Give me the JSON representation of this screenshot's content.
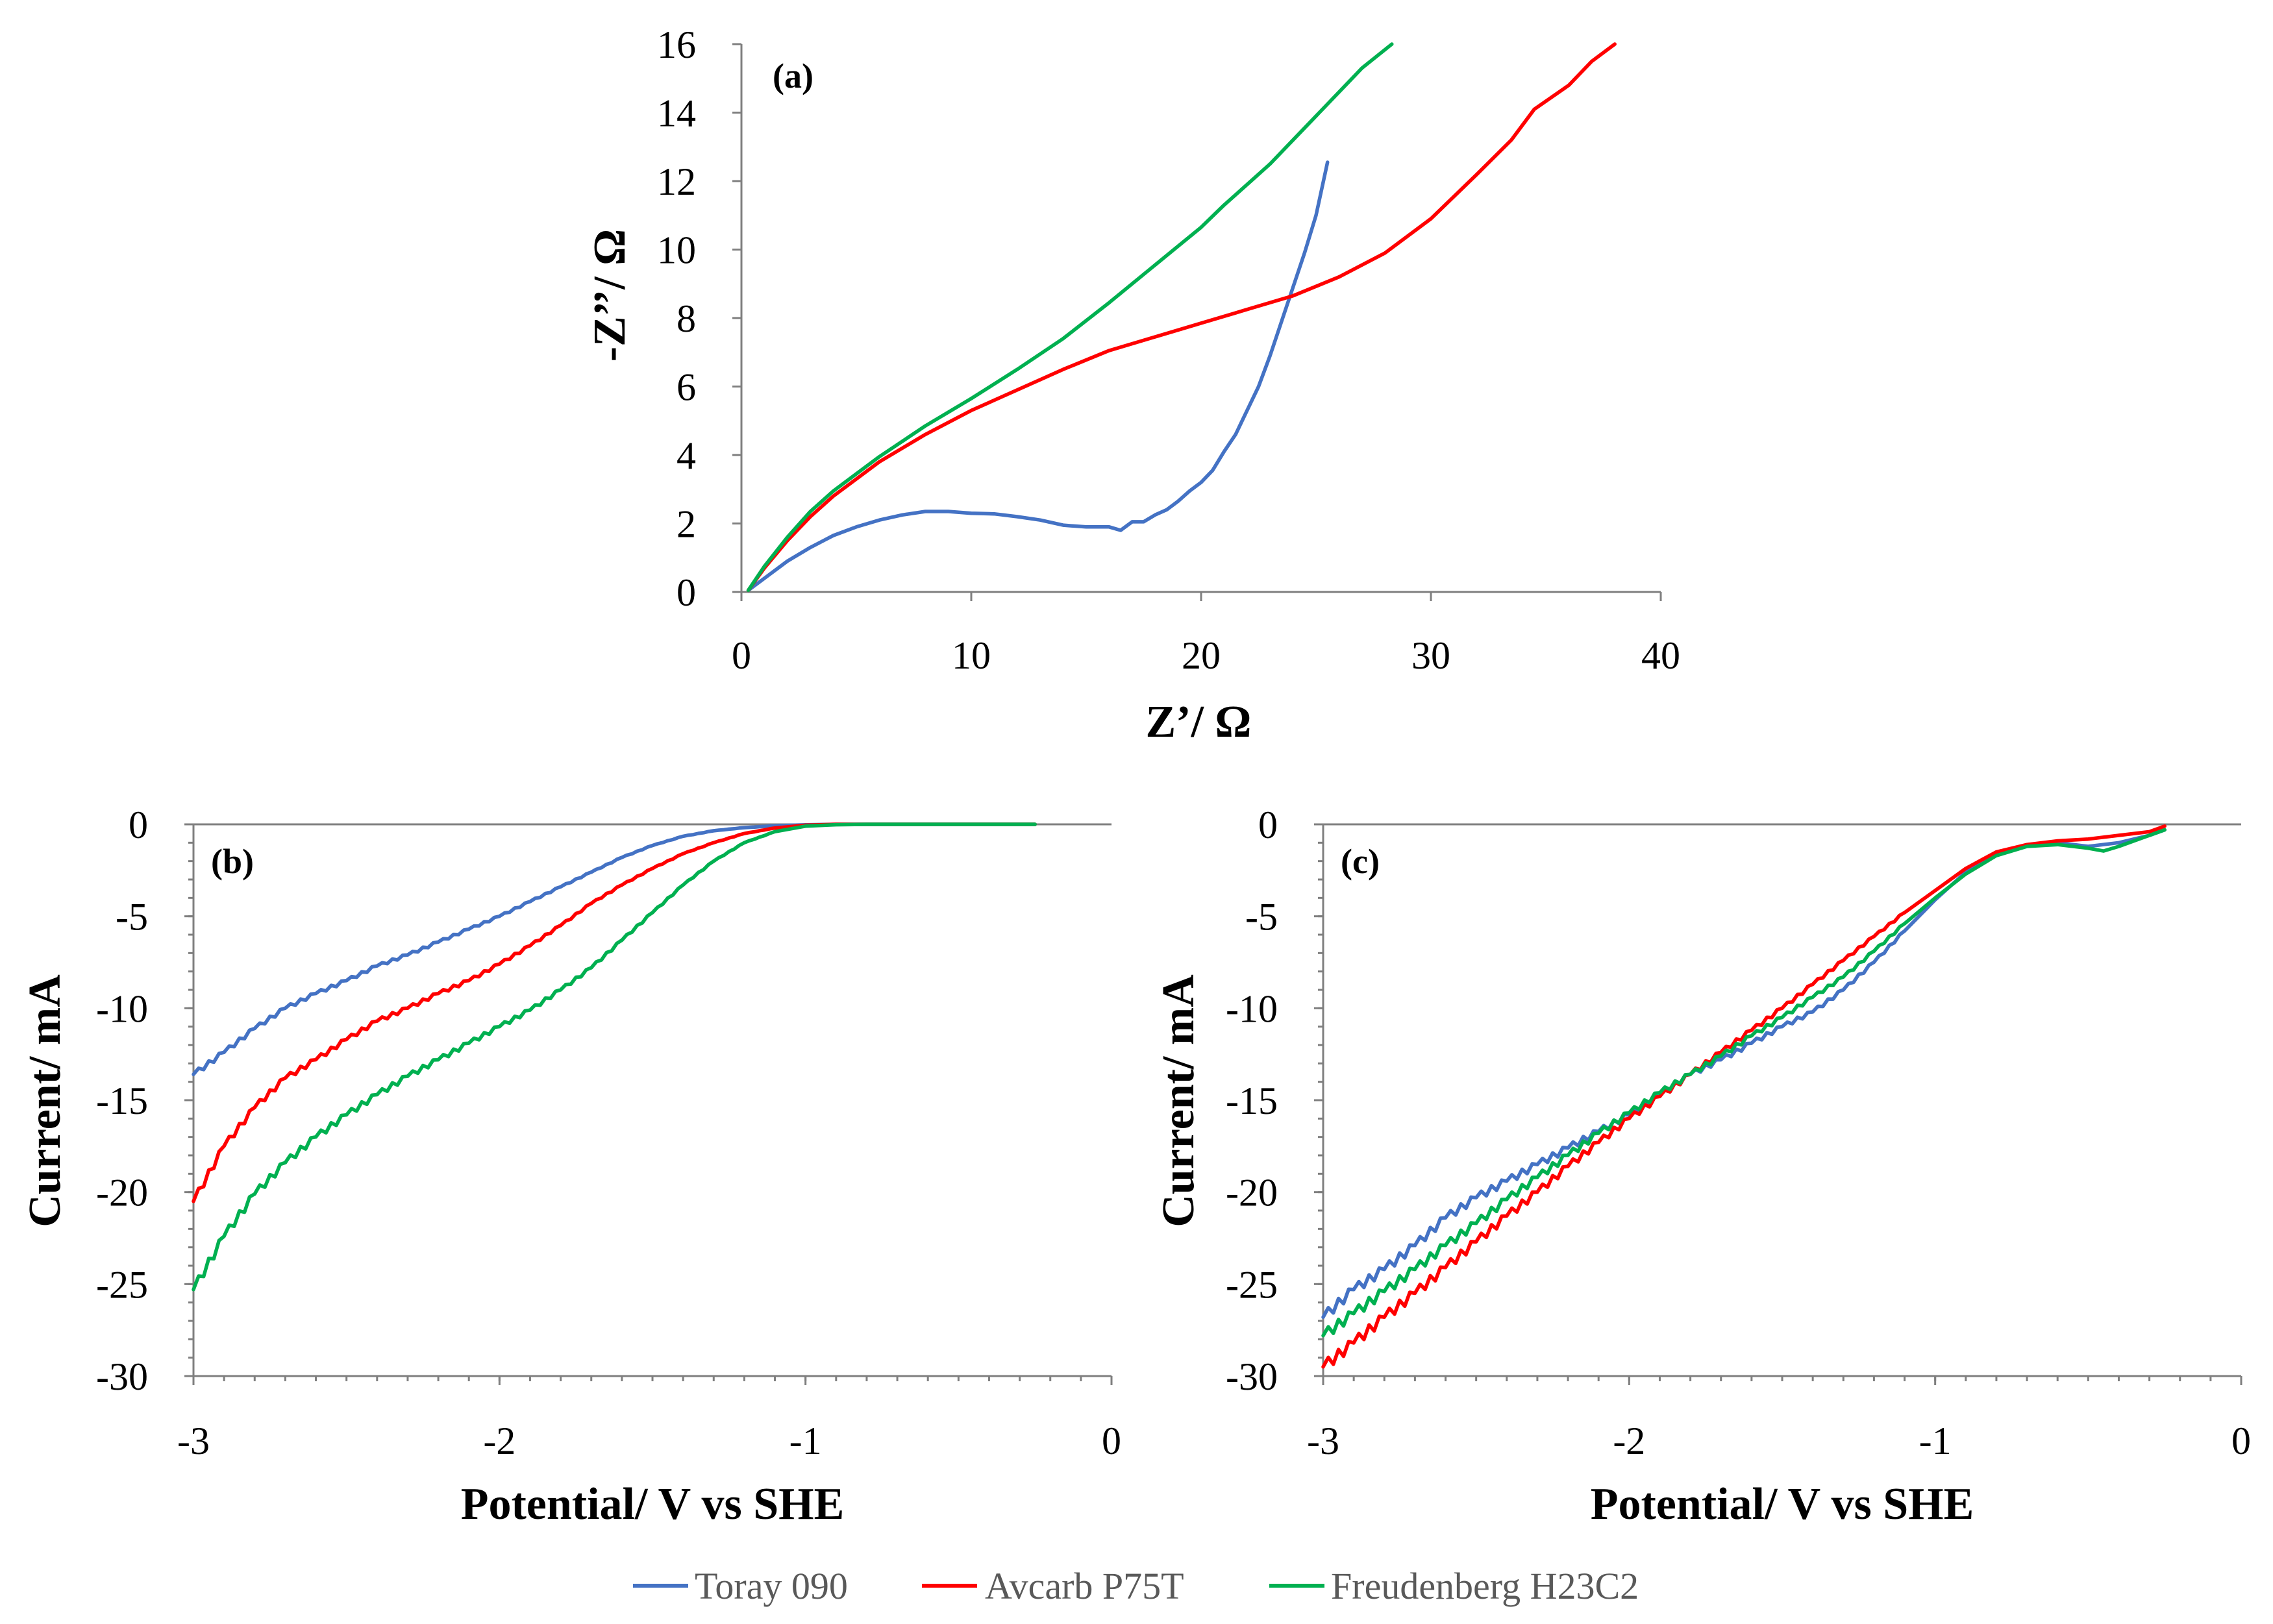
{
  "colors": {
    "toray": "#4472C4",
    "avcarb": "#FF0000",
    "freudenberg": "#00B050",
    "axis": "#7f7f7f"
  },
  "legend": [
    {
      "label": "Toray 090",
      "color": "#4472C4"
    },
    {
      "label": "Avcarb P75T",
      "color": "#FF0000"
    },
    {
      "label": "Freudenberg H23C2",
      "color": "#00B050"
    }
  ],
  "chart_data": [
    {
      "id": "a",
      "panel_label": "(a)",
      "type": "line",
      "xlabel": "Z’/ Ω",
      "ylabel": "-Z’’/ Ω",
      "xlim": [
        0,
        40
      ],
      "ylim": [
        0,
        16
      ],
      "xticks": [
        "0",
        "10",
        "20",
        "30",
        "40"
      ],
      "yticks": [
        "0",
        "2",
        "4",
        "6",
        "8",
        "10",
        "12",
        "14",
        "16"
      ],
      "series": [
        {
          "name": "Toray 090",
          "color": "#4472C4",
          "x": [
            0.3,
            1,
            2,
            3,
            4,
            5,
            6,
            7,
            8,
            9,
            10,
            11,
            12,
            13,
            14,
            15,
            16,
            16.5,
            17,
            17.5,
            18,
            18.5,
            19,
            19.5,
            20,
            20.5,
            21,
            21.5,
            22,
            22.5,
            23,
            23.5,
            24,
            24.5,
            25,
            25.5
          ],
          "y": [
            0.05,
            0.4,
            0.9,
            1.3,
            1.65,
            1.9,
            2.1,
            2.25,
            2.35,
            2.35,
            2.3,
            2.28,
            2.2,
            2.1,
            1.95,
            1.9,
            1.9,
            1.8,
            2.05,
            2.05,
            2.25,
            2.4,
            2.65,
            2.95,
            3.2,
            3.55,
            4.1,
            4.6,
            5.3,
            6.0,
            6.9,
            7.9,
            8.9,
            9.9,
            11.0,
            12.55
          ]
        },
        {
          "name": "Avcarb P75T",
          "color": "#FF0000",
          "x": [
            0.3,
            1,
            2,
            3,
            4,
            5,
            6,
            8,
            10,
            12,
            14,
            16,
            18,
            20,
            22,
            24,
            26,
            28,
            30,
            32,
            33.5,
            34.5,
            36,
            37,
            38
          ],
          "y": [
            0.05,
            0.7,
            1.5,
            2.2,
            2.8,
            3.3,
            3.8,
            4.6,
            5.3,
            5.9,
            6.5,
            7.05,
            7.45,
            7.85,
            8.25,
            8.65,
            9.2,
            9.9,
            10.9,
            12.2,
            13.2,
            14.1,
            14.8,
            15.5,
            16.2
          ]
        },
        {
          "name": "Freudenberg H23C2",
          "color": "#00B050",
          "x": [
            0.3,
            1,
            2,
            3,
            4,
            5,
            6,
            8,
            10,
            12,
            14,
            16,
            18,
            20,
            21,
            22,
            23,
            24,
            25,
            26,
            27,
            28.3
          ],
          "y": [
            0.05,
            0.75,
            1.6,
            2.35,
            2.95,
            3.45,
            3.95,
            4.85,
            5.65,
            6.5,
            7.4,
            8.45,
            9.55,
            10.65,
            11.3,
            11.9,
            12.5,
            13.2,
            13.9,
            14.6,
            15.3,
            16.0
          ]
        }
      ]
    },
    {
      "id": "b",
      "panel_label": "(b)",
      "type": "line",
      "xlabel": "Potential/ V vs SHE",
      "ylabel": "Current/ mA",
      "xlim": [
        -3,
        0
      ],
      "ylim": [
        -30,
        0
      ],
      "xticks": [
        "-3",
        "-2",
        "-1",
        "0"
      ],
      "yticks": [
        "-30",
        "-25",
        "-20",
        "-15",
        "-10",
        "-5",
        "0"
      ],
      "series": [
        {
          "name": "Toray 090",
          "color": "#4472C4",
          "x": [
            -3.0,
            -2.9,
            -2.8,
            -2.7,
            -2.6,
            -2.5,
            -2.4,
            -2.3,
            -2.2,
            -2.1,
            -2.0,
            -1.9,
            -1.8,
            -1.7,
            -1.6,
            -1.5,
            -1.4,
            -1.3,
            -1.2,
            -1.1,
            -1.0,
            -0.9,
            -0.8,
            -0.7,
            -0.5,
            -0.25
          ],
          "y": [
            -13.6,
            -12.4,
            -11.1,
            -10.0,
            -9.2,
            -8.5,
            -7.7,
            -7.1,
            -6.4,
            -5.7,
            -5.0,
            -4.2,
            -3.4,
            -2.6,
            -1.8,
            -1.15,
            -0.65,
            -0.35,
            -0.18,
            -0.08,
            -0.03,
            0,
            0,
            0,
            0,
            0
          ]
        },
        {
          "name": "Avcarb P75T",
          "color": "#FF0000",
          "x": [
            -3.0,
            -2.9,
            -2.8,
            -2.7,
            -2.6,
            -2.5,
            -2.4,
            -2.3,
            -2.2,
            -2.1,
            -2.0,
            -1.9,
            -1.8,
            -1.7,
            -1.6,
            -1.5,
            -1.4,
            -1.3,
            -1.2,
            -1.1,
            -1.0,
            -0.9,
            -0.8,
            -0.7,
            -0.5,
            -0.25
          ],
          "y": [
            -20.5,
            -17.5,
            -15.4,
            -13.8,
            -12.8,
            -11.7,
            -10.7,
            -10.0,
            -9.2,
            -8.5,
            -7.6,
            -6.6,
            -5.5,
            -4.3,
            -3.3,
            -2.4,
            -1.6,
            -1.0,
            -0.5,
            -0.2,
            -0.05,
            0,
            0,
            0,
            0,
            0
          ]
        },
        {
          "name": "Freudenberg H23C2",
          "color": "#00B050",
          "x": [
            -3.0,
            -2.9,
            -2.8,
            -2.7,
            -2.6,
            -2.5,
            -2.4,
            -2.3,
            -2.2,
            -2.1,
            -2.0,
            -1.9,
            -1.8,
            -1.7,
            -1.6,
            -1.5,
            -1.4,
            -1.3,
            -1.2,
            -1.1,
            -1.0,
            -0.9,
            -0.8,
            -0.7,
            -0.5,
            -0.25
          ],
          "y": [
            -25.3,
            -22.4,
            -20.1,
            -18.4,
            -17.0,
            -15.8,
            -14.7,
            -13.7,
            -12.8,
            -11.9,
            -11.0,
            -10.1,
            -9.0,
            -7.8,
            -6.3,
            -4.8,
            -3.3,
            -2.0,
            -1.0,
            -0.4,
            -0.1,
            -0.02,
            0,
            0,
            0,
            0
          ]
        }
      ]
    },
    {
      "id": "c",
      "panel_label": "(c)",
      "type": "line",
      "xlabel": "Potential/ V vs SHE",
      "ylabel": "Current/ mA",
      "xlim": [
        -3,
        0
      ],
      "ylim": [
        -30,
        0
      ],
      "xticks": [
        "-3",
        "-2",
        "-1",
        "0"
      ],
      "yticks": [
        "-30",
        "-25",
        "-20",
        "-15",
        "-10",
        "-5",
        "0"
      ],
      "series": [
        {
          "name": "Toray 090",
          "color": "#4472C4",
          "x": [
            -3.0,
            -2.9,
            -2.8,
            -2.7,
            -2.6,
            -2.5,
            -2.4,
            -2.3,
            -2.2,
            -2.1,
            -2.0,
            -1.9,
            -1.8,
            -1.7,
            -1.6,
            -1.5,
            -1.4,
            -1.3,
            -1.2,
            -1.1,
            -1.0,
            -0.9,
            -0.8,
            -0.7,
            -0.6,
            -0.5,
            -0.4,
            -0.3,
            -0.25
          ],
          "y": [
            -26.8,
            -25.3,
            -24.2,
            -22.9,
            -21.4,
            -20.3,
            -19.4,
            -18.5,
            -17.6,
            -16.7,
            -15.8,
            -14.8,
            -13.6,
            -12.8,
            -11.9,
            -11.0,
            -10.2,
            -9.0,
            -7.5,
            -5.8,
            -4.1,
            -2.6,
            -1.6,
            -1.1,
            -1.0,
            -1.2,
            -1.0,
            -0.6,
            -0.3
          ]
        },
        {
          "name": "Avcarb P75T",
          "color": "#FF0000",
          "x": [
            -3.0,
            -2.9,
            -2.8,
            -2.7,
            -2.6,
            -2.5,
            -2.4,
            -2.3,
            -2.2,
            -2.1,
            -2.0,
            -1.9,
            -1.8,
            -1.7,
            -1.6,
            -1.5,
            -1.4,
            -1.3,
            -1.2,
            -1.1,
            -1.0,
            -0.9,
            -0.8,
            -0.7,
            -0.6,
            -0.5,
            -0.4,
            -0.3,
            -0.25
          ],
          "y": [
            -29.5,
            -28.2,
            -26.8,
            -25.5,
            -24.1,
            -22.7,
            -21.3,
            -20.0,
            -18.6,
            -17.3,
            -16.0,
            -14.8,
            -13.6,
            -12.4,
            -11.2,
            -10.0,
            -8.7,
            -7.4,
            -6.1,
            -4.8,
            -3.6,
            -2.4,
            -1.5,
            -1.1,
            -0.9,
            -0.8,
            -0.6,
            -0.4,
            -0.1
          ]
        },
        {
          "name": "Freudenberg H23C2",
          "color": "#00B050",
          "x": [
            -3.0,
            -2.9,
            -2.8,
            -2.7,
            -2.6,
            -2.5,
            -2.4,
            -2.3,
            -2.2,
            -2.1,
            -2.0,
            -1.9,
            -1.8,
            -1.7,
            -1.6,
            -1.5,
            -1.4,
            -1.3,
            -1.2,
            -1.1,
            -1.0,
            -0.9,
            -0.8,
            -0.7,
            -0.6,
            -0.5,
            -0.45,
            -0.4,
            -0.3,
            -0.25
          ],
          "y": [
            -27.8,
            -26.6,
            -25.4,
            -24.2,
            -22.9,
            -21.7,
            -20.4,
            -19.2,
            -18.0,
            -16.8,
            -15.7,
            -14.6,
            -13.6,
            -12.6,
            -11.5,
            -10.5,
            -9.4,
            -8.3,
            -6.9,
            -5.4,
            -4.0,
            -2.7,
            -1.7,
            -1.2,
            -1.1,
            -1.3,
            -1.45,
            -1.2,
            -0.6,
            -0.3
          ]
        }
      ]
    }
  ]
}
